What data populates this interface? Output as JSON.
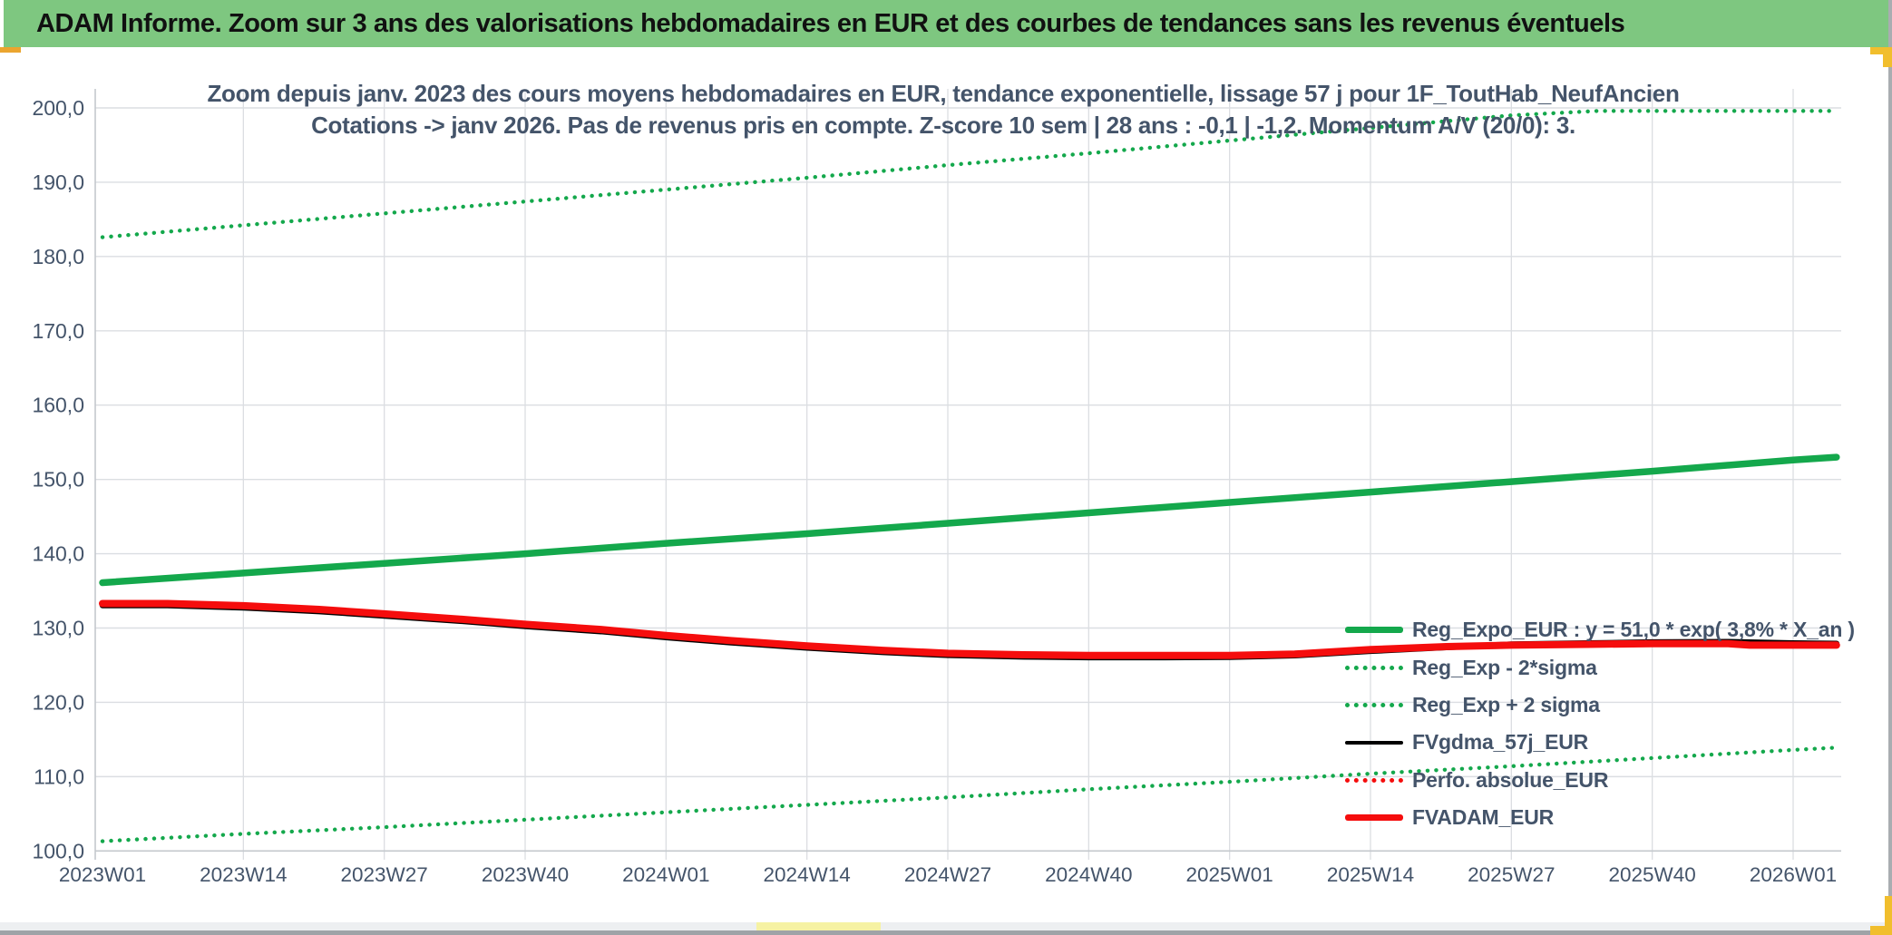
{
  "header": {
    "title": "ADAM Informe. Zoom sur 3 ans des valorisations hebdomadaires en EUR et des courbes de tendances sans les revenus éventuels"
  },
  "colors": {
    "titlebar_green": "#7ec780",
    "accent_gold": "#f1be2d",
    "accent_orange": "#eba52f",
    "series_green": "#14a84c",
    "series_red": "#f50d0d",
    "series_black": "#000000",
    "text_slate": "#44546a",
    "gridline": "#dbdee2",
    "axis_line": "#c4c8cd"
  },
  "chart_data": {
    "type": "line",
    "title": "Zoom depuis janv. 2023 des cours moyens hebdomadaires en EUR, tendance exponentielle, lissage 57 j pour 1F_ToutHab_NeufAncien",
    "subtitle": "Cotations -> janv 2026. Pas de revenus pris en compte. Z-score 10 sem | 28 ans : -0,1 | -1,2. Momentum A/V (20/0): 3.",
    "x_axis_unit": "ISO week",
    "x_tick_labels": [
      "2023W01",
      "2023W14",
      "2023W27",
      "2023W40",
      "2024W01",
      "2024W14",
      "2024W27",
      "2024W40",
      "2025W01",
      "2025W14",
      "2025W27",
      "2025W40",
      "2026W01"
    ],
    "x_tick_weeks": [
      0,
      13,
      26,
      39,
      52,
      65,
      78,
      91,
      104,
      117,
      130,
      143,
      156
    ],
    "y_tick_labels": [
      "200,0",
      "190,0",
      "180,0",
      "170,0",
      "160,0",
      "150,0",
      "140,0",
      "130,0",
      "120,0",
      "110,0",
      "100,0"
    ],
    "y_tick_values": [
      200,
      190,
      180,
      170,
      160,
      150,
      140,
      130,
      120,
      110,
      100
    ],
    "ylim": [
      100,
      200
    ],
    "xlim_weeks": [
      -0.7,
      161
    ],
    "grid": true,
    "legend_position": "inside-right",
    "series": [
      {
        "name": "Reg_Expo_EUR : y = 51,0 * exp( 3,8% *  X_an )",
        "color": "#14a84c",
        "dash": false,
        "width": 7.5,
        "marker": "thick",
        "weeks": [
          0,
          13,
          26,
          39,
          52,
          65,
          78,
          91,
          104,
          117,
          130,
          143,
          156,
          160
        ],
        "values": [
          136.1,
          137.4,
          138.7,
          140.0,
          141.4,
          142.7,
          144.1,
          145.5,
          146.9,
          148.3,
          149.7,
          151.1,
          152.6,
          153.0
        ]
      },
      {
        "name": "Reg_Exp - 2*sigma",
        "color": "#14a84c",
        "dash": true,
        "width": 4.4,
        "marker": "dotted",
        "weeks": [
          0,
          13,
          26,
          39,
          52,
          65,
          78,
          91,
          104,
          117,
          130,
          143,
          156,
          160
        ],
        "values": [
          101.3,
          102.3,
          103.2,
          104.2,
          105.2,
          106.2,
          107.2,
          108.3,
          109.3,
          110.4,
          111.4,
          112.5,
          113.6,
          113.9
        ]
      },
      {
        "name": "Reg_Exp + 2 sigma",
        "color": "#14a84c",
        "dash": true,
        "width": 4.4,
        "marker": "dotted",
        "weeks": [
          0,
          13,
          26,
          39,
          52,
          65,
          78,
          91,
          104,
          117,
          130,
          138,
          143,
          156,
          160
        ],
        "values": [
          182.6,
          184.2,
          185.8,
          187.4,
          189.0,
          190.6,
          192.3,
          193.9,
          195.6,
          197.3,
          199.0,
          199.6,
          199.6,
          199.6,
          199.6
        ]
      },
      {
        "name": "FVgdma_57j_EUR",
        "color": "#000000",
        "dash": false,
        "width": 6.5,
        "marker": "thin",
        "weeks": [
          0,
          6,
          13,
          20,
          26,
          33,
          39,
          46,
          52,
          58,
          65,
          72,
          78,
          85,
          91,
          98,
          104,
          110,
          117,
          124,
          130,
          137,
          143,
          150,
          156,
          160
        ],
        "values": [
          133.05,
          133.05,
          132.75,
          132.25,
          131.65,
          130.95,
          130.25,
          129.55,
          128.75,
          128.05,
          127.35,
          126.75,
          126.35,
          126.15,
          126.05,
          126.05,
          126.1,
          126.3,
          126.9,
          127.4,
          127.8,
          127.95,
          128.1,
          128.15,
          127.95,
          127.9
        ]
      },
      {
        "name": "Perfo. absolue_EUR",
        "color": "#f50d0d",
        "dash": true,
        "width": 4.4,
        "marker": "dotted",
        "weeks": [
          0,
          6,
          13,
          20,
          26,
          33,
          39,
          46,
          52,
          58,
          65,
          72,
          78,
          85,
          91,
          98,
          104,
          110,
          117,
          124,
          130,
          137,
          143,
          150,
          152,
          156,
          160
        ],
        "values": [
          133.3,
          133.3,
          133.0,
          132.5,
          131.9,
          131.2,
          130.5,
          129.8,
          129.0,
          128.3,
          127.6,
          127.0,
          126.6,
          126.4,
          126.3,
          126.3,
          126.3,
          126.5,
          127.1,
          127.5,
          127.7,
          127.8,
          127.9,
          127.9,
          127.7,
          127.7,
          127.7
        ]
      },
      {
        "name": "FVADAM_EUR",
        "color": "#f50d0d",
        "dash": false,
        "width": 8,
        "marker": "thick",
        "weeks": [
          0,
          6,
          13,
          20,
          26,
          33,
          39,
          46,
          52,
          58,
          65,
          72,
          78,
          85,
          91,
          98,
          104,
          110,
          117,
          124,
          130,
          137,
          143,
          150,
          152,
          156,
          160
        ],
        "values": [
          133.3,
          133.3,
          133.0,
          132.5,
          131.9,
          131.2,
          130.5,
          129.8,
          129.0,
          128.3,
          127.6,
          127.0,
          126.6,
          126.4,
          126.3,
          126.3,
          126.3,
          126.5,
          127.1,
          127.5,
          127.7,
          127.8,
          127.9,
          127.9,
          127.7,
          127.7,
          127.7
        ]
      }
    ]
  }
}
